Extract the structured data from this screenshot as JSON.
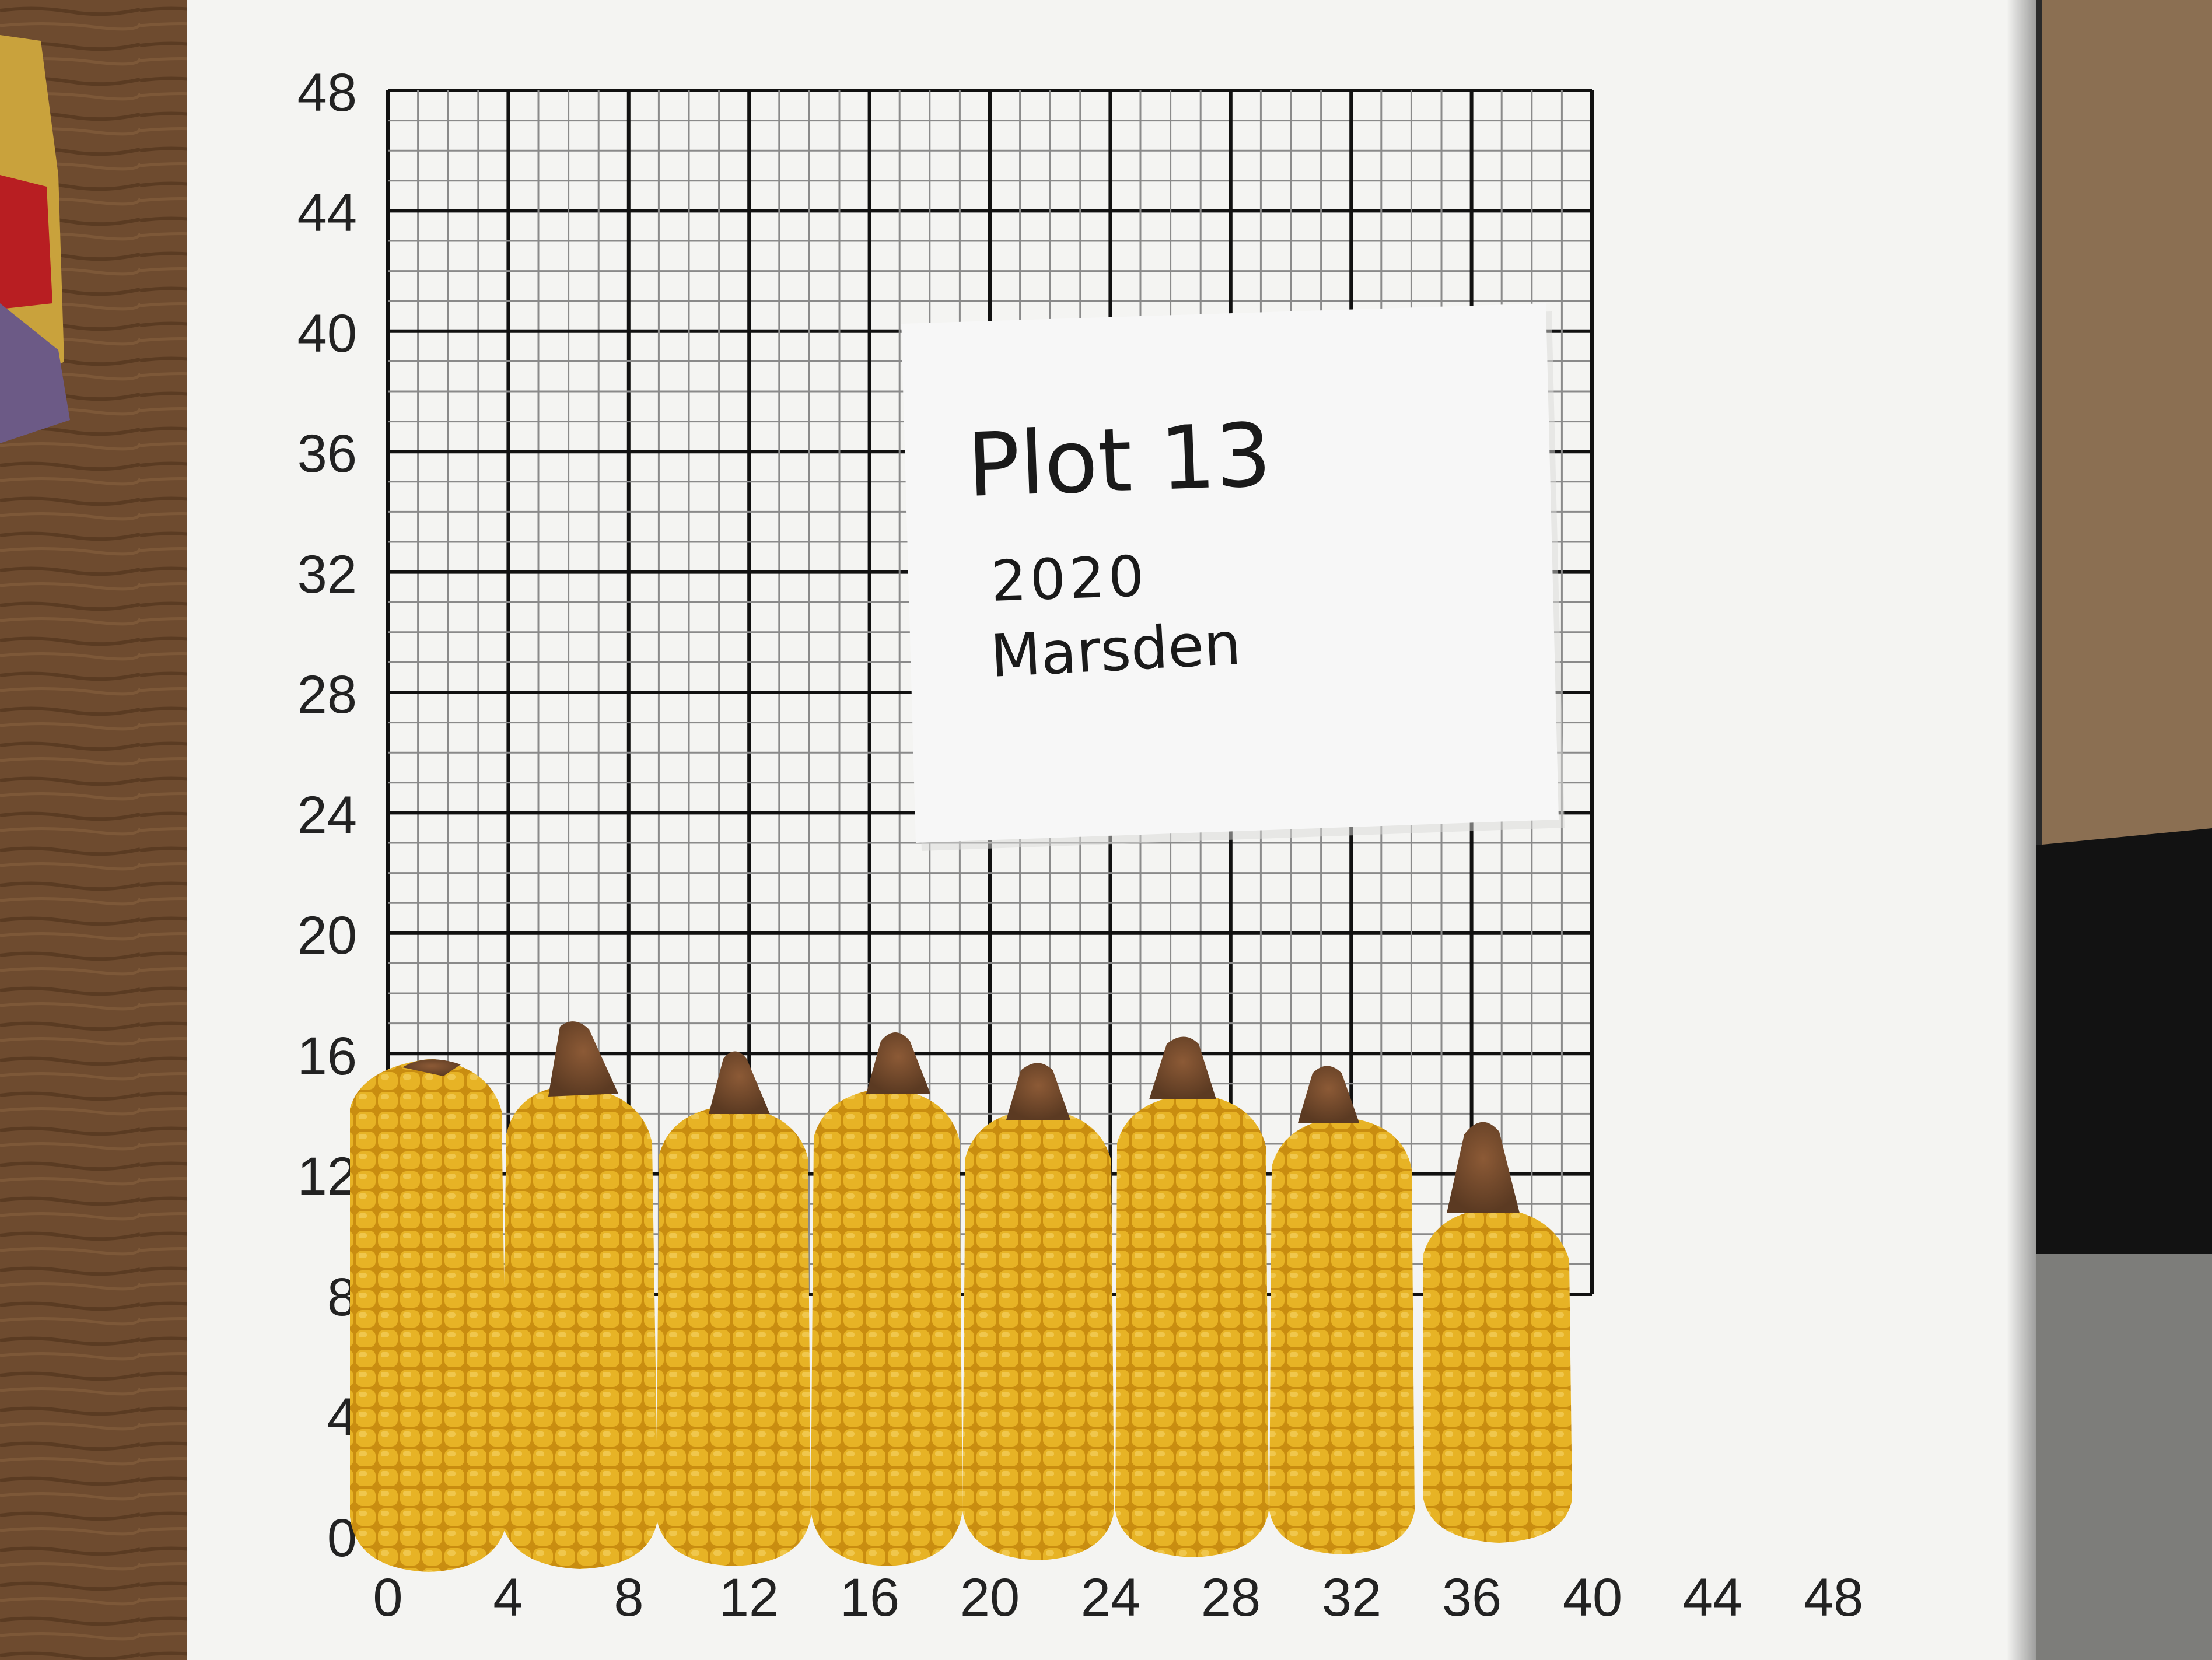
{
  "board": {
    "y_axis_labels": [
      "48",
      "44",
      "40",
      "36",
      "32",
      "28",
      "24",
      "20",
      "16",
      "12",
      "8",
      "4",
      "0"
    ],
    "x_axis_labels": [
      "0",
      "4",
      "8",
      "12",
      "16",
      "20",
      "24",
      "28",
      "32",
      "36",
      "40",
      "44",
      "48"
    ]
  },
  "note": {
    "line1": "Plot 13",
    "line2": "2020",
    "line3": "Marsden"
  },
  "corn": {
    "count": 8,
    "kernel_color": "#e2a91c",
    "tip_color": "#7a4a2a"
  },
  "colors": {
    "background": "#6b4a2e",
    "board": "#f4f4f2",
    "grid_major": "#111111",
    "grid_minor": "#8a8a8a",
    "note_paper": "#f7f7f7"
  }
}
